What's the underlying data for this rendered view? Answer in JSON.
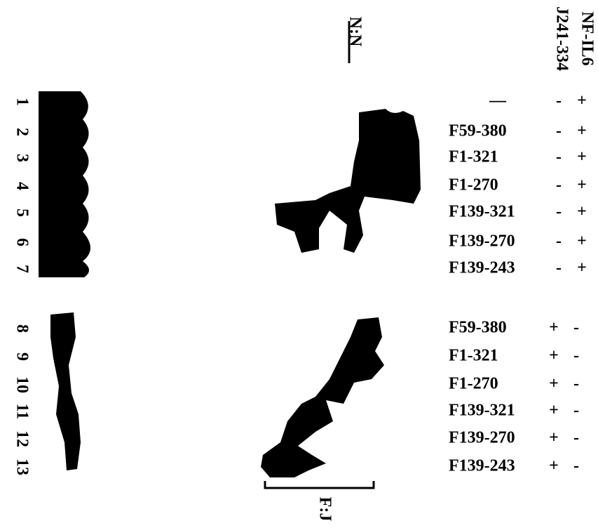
{
  "headers": {
    "nfil6": "NF-IL6",
    "j241": "J241-334",
    "nn": "N:N",
    "fj": "F:J"
  },
  "lanes": [
    "1",
    "2",
    "3",
    "4",
    "5",
    "6",
    "7",
    "8",
    "9",
    "10",
    "11",
    "12",
    "13"
  ],
  "rows": [
    {
      "label": "—",
      "j241": "-",
      "nfil6": "+"
    },
    {
      "label": "F59-380",
      "j241": "-",
      "nfil6": "+"
    },
    {
      "label": "F1-321",
      "j241": "-",
      "nfil6": "+"
    },
    {
      "label": "F1-270",
      "j241": "-",
      "nfil6": "+"
    },
    {
      "label": "F139-321",
      "j241": "-",
      "nfil6": "+"
    },
    {
      "label": "F139-270",
      "j241": "-",
      "nfil6": "+"
    },
    {
      "label": "F139-243",
      "j241": "-",
      "nfil6": "+"
    },
    {
      "label": "F59-380",
      "j241": "+",
      "nfil6": "-"
    },
    {
      "label": "F1-321",
      "j241": "+",
      "nfil6": "-"
    },
    {
      "label": "F1-270",
      "j241": "+",
      "nfil6": "-"
    },
    {
      "label": "F139-321",
      "j241": "+",
      "nfil6": "-"
    },
    {
      "label": "F139-270",
      "j241": "+",
      "nfil6": "-"
    },
    {
      "label": "F139-243",
      "j241": "+",
      "nfil6": "-"
    }
  ]
}
